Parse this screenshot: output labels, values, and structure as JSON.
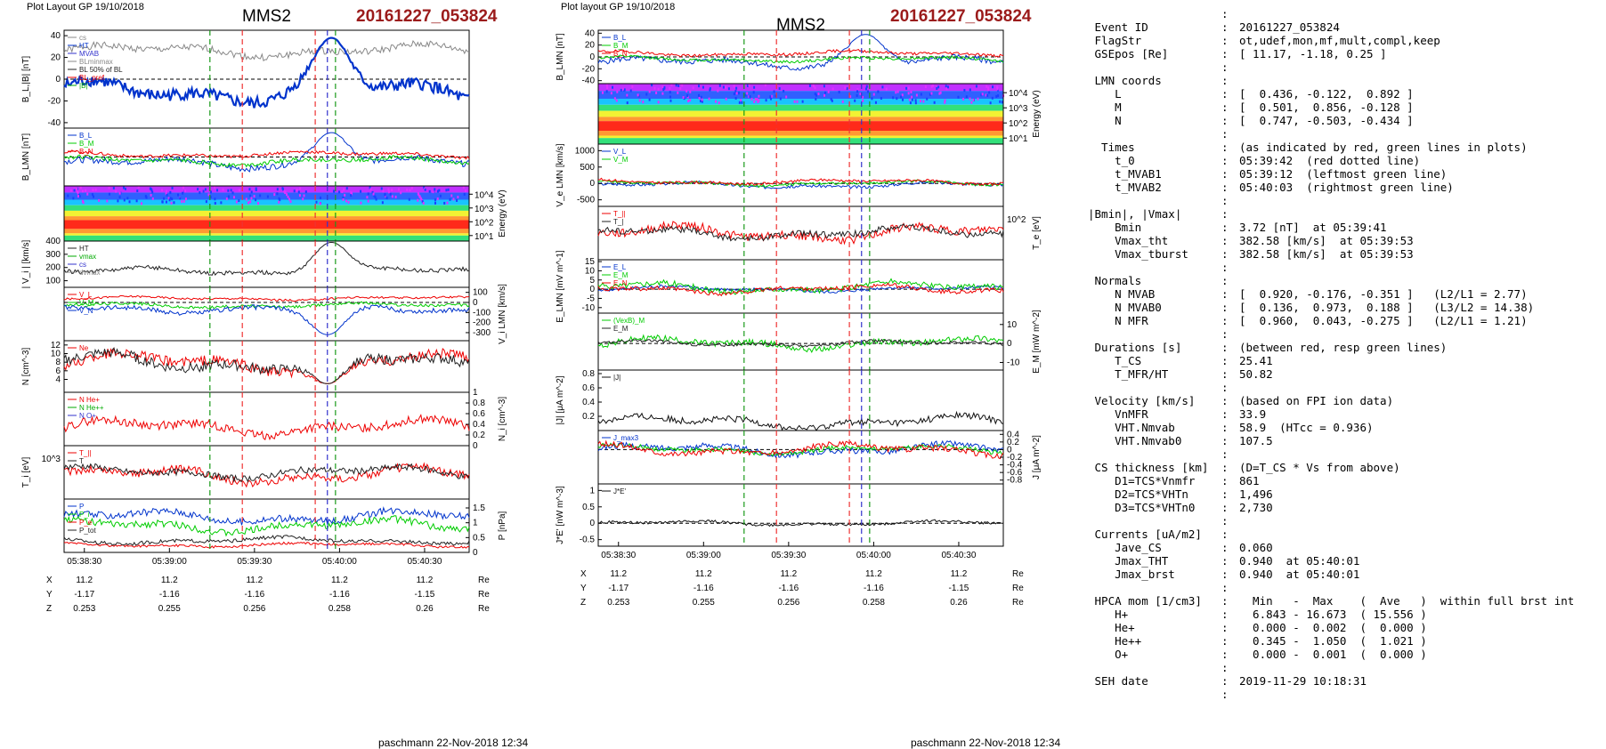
{
  "plots": [
    {
      "header_left": "Plot Layout GP 19/10/2018",
      "spacecraft": "MMS2",
      "event": "20161227_053824",
      "footer": "paschmann 22-Nov-2018 12:34",
      "times": [
        "05:38:30",
        "05:39:00",
        "05:39:30",
        "05:40:00",
        "05:40:30"
      ],
      "coord_rows": [
        {
          "label": "X",
          "values": [
            "11.2",
            "11.2",
            "11.2",
            "11.2",
            "11.2"
          ],
          "unit": "Re"
        },
        {
          "label": "Y",
          "values": [
            "-1.17",
            "-1.16",
            "-1.16",
            "-1.16",
            "-1.15"
          ],
          "unit": "Re"
        },
        {
          "label": "Z",
          "values": [
            "0.253",
            "0.255",
            "0.256",
            "0.258",
            "0.26"
          ],
          "unit": "Re"
        }
      ],
      "panels": [
        {
          "id": "p1a",
          "type": "line",
          "ylabel": "B_L,|B| [nT]",
          "side": "left",
          "ylim": [
            -45,
            45
          ],
          "ticks": [
            -40,
            -20,
            0,
            20,
            40
          ],
          "legend": [
            "cs",
            "HT",
            "MVAB",
            "BLminmax",
            "BL 50% of BL",
            "BL_pref",
            "|B|"
          ],
          "series": [
            {
              "c": "#888",
              "base": 26,
              "amp": 8,
              "w": 1
            },
            {
              "c": "#0033cc",
              "base": -12,
              "amp": 14,
              "w": 2.2,
              "peak": 38
            }
          ]
        },
        {
          "id": "p1b",
          "type": "line",
          "ylabel": "B_LMN [nT]",
          "side": "left",
          "ylim": [
            -45,
            45
          ],
          "ticks": [],
          "legend": [
            "B_L",
            "B_M",
            "B_N"
          ],
          "series": [
            {
              "c": "#0033cc",
              "base": -10,
              "amp": 12,
              "w": 1,
              "peak": 38
            },
            {
              "c": "#00cc00",
              "base": -6,
              "amp": 8,
              "w": 1
            },
            {
              "c": "#e00",
              "base": 4,
              "amp": 6,
              "w": 1
            }
          ]
        },
        {
          "id": "p1c",
          "type": "spectrogram",
          "ylabel": "Energy (eV)",
          "side": "right",
          "ticks_text": [
            "10^4",
            "10^3",
            "10^2",
            "10^1"
          ]
        },
        {
          "id": "p1d",
          "type": "line",
          "ylabel": "| V_i | [km/s]",
          "side": "left",
          "ylim": [
            50,
            400
          ],
          "ticks": [
            100,
            200,
            300,
            400
          ],
          "legend": [
            "HT",
            "vmax",
            "cs",
            "dvmax"
          ],
          "series": [
            {
              "c": "#222",
              "base": 170,
              "amp": 40,
              "w": 1,
              "peak": 390
            }
          ]
        },
        {
          "id": "p1e",
          "type": "line",
          "ylabel": "V_i LMN [km/s]",
          "side": "right",
          "ylim": [
            -380,
            150
          ],
          "ticks": [
            100,
            0,
            -100,
            -200,
            -300
          ],
          "legend": [
            "V_L",
            "V_M",
            "V_N"
          ],
          "series": [
            {
              "c": "#e00",
              "base": 40,
              "amp": 25,
              "w": 1
            },
            {
              "c": "#00cc00",
              "base": -30,
              "amp": 35,
              "w": 1
            },
            {
              "c": "#0033cc",
              "base": -60,
              "amp": 60,
              "w": 1,
              "dip": -320
            }
          ]
        },
        {
          "id": "p1f",
          "type": "line",
          "ylabel": "N [cm^-3]",
          "side": "left",
          "ylim": [
            1,
            13
          ],
          "ticks": [
            4,
            6,
            8,
            10,
            12
          ],
          "legend": [
            "Ne"
          ],
          "series": [
            {
              "c": "#e00",
              "base": 8,
              "amp": 3,
              "w": 1,
              "dip": 3
            },
            {
              "c": "#222",
              "base": 8,
              "amp": 3,
              "w": 1,
              "dip": 3
            }
          ]
        },
        {
          "id": "p1g",
          "type": "line",
          "ylabel": "N_i [cm^-3]",
          "side": "right",
          "ylim": [
            0,
            1
          ],
          "ticks": [
            0,
            0.2,
            0.4,
            0.6,
            0.8,
            1.0
          ],
          "legend": [
            "N He+",
            "N He++",
            "N O+"
          ],
          "series": [
            {
              "c": "#e00",
              "base": 0.35,
              "amp": 0.2,
              "w": 1
            }
          ]
        },
        {
          "id": "p1h",
          "type": "line",
          "ylabel": "T_i [eV]",
          "side": "left",
          "ylim": [
            0,
            1
          ],
          "ticks_text": [
            "10^3"
          ],
          "legend": [
            "T_||",
            "T"
          ],
          "series": [
            {
              "c": "#e00",
              "base": 0.45,
              "amp": 0.2,
              "w": 1
            },
            {
              "c": "#222",
              "base": 0.5,
              "amp": 0.15,
              "w": 1
            }
          ]
        },
        {
          "id": "p1i",
          "type": "line",
          "ylabel": "P [nPa]",
          "side": "right",
          "ylim": [
            0,
            1.8
          ],
          "ticks": [
            0,
            0.5,
            1.0,
            1.5
          ],
          "legend": [
            "P",
            "P_i",
            "P_e",
            "P_tot"
          ],
          "series": [
            {
              "c": "#0033cc",
              "base": 1.2,
              "amp": 0.3,
              "w": 1
            },
            {
              "c": "#00cc00",
              "base": 0.9,
              "amp": 0.3,
              "w": 1
            },
            {
              "c": "#e00",
              "base": 0.25,
              "amp": 0.1,
              "w": 1
            },
            {
              "c": "#222",
              "base": 0.4,
              "amp": 0.15,
              "w": 1
            }
          ]
        }
      ]
    },
    {
      "header_left": "Plot layout GP 19/10/2018",
      "spacecraft": "MMS2",
      "event": "20161227_053824",
      "footer": "paschmann 22-Nov-2018 12:34",
      "times": [
        "05:38:30",
        "05:39:00",
        "05:39:30",
        "05:40:00",
        "05:40:30"
      ],
      "coord_rows": [
        {
          "label": "X",
          "values": [
            "11.2",
            "11.2",
            "11.2",
            "11.2",
            "11.2"
          ],
          "unit": "Re"
        },
        {
          "label": "Y",
          "values": [
            "-1.17",
            "-1.16",
            "-1.16",
            "-1.16",
            "-1.15"
          ],
          "unit": "Re"
        },
        {
          "label": "Z",
          "values": [
            "0.253",
            "0.255",
            "0.256",
            "0.258",
            "0.26"
          ],
          "unit": "Re"
        }
      ],
      "panels": [
        {
          "id": "p2a",
          "type": "line",
          "ylabel": "B_LMN [nT]",
          "side": "left",
          "ylim": [
            -45,
            45
          ],
          "ticks": [
            40,
            20,
            0,
            -20,
            -40
          ],
          "legend": [
            "B_L",
            "B_M",
            "B_N"
          ],
          "series": [
            {
              "c": "#0033cc",
              "base": -10,
              "amp": 12,
              "w": 1,
              "peak": 38
            },
            {
              "c": "#00cc00",
              "base": -4,
              "amp": 6,
              "w": 1
            },
            {
              "c": "#e00",
              "base": 6,
              "amp": 6,
              "w": 1
            }
          ]
        },
        {
          "id": "p2b",
          "type": "spectrogram",
          "ylabel": "Energy (eV)",
          "side": "right",
          "ticks_text": [
            "10^4",
            "10^3",
            "10^2",
            "10^1"
          ]
        },
        {
          "id": "p2c",
          "type": "line",
          "ylabel": "V_e LMN [km/s]",
          "side": "left",
          "ylim": [
            -700,
            1200
          ],
          "ticks": [
            1000,
            500,
            0,
            -500
          ],
          "legend": [
            "V_L",
            "V_M"
          ],
          "series": [
            {
              "c": "#0033cc",
              "base": -50,
              "amp": 120,
              "w": 1
            },
            {
              "c": "#00cc00",
              "base": 0,
              "amp": 100,
              "w": 1
            },
            {
              "c": "#e00",
              "base": 50,
              "amp": 100,
              "w": 1
            }
          ]
        },
        {
          "id": "p2d",
          "type": "line",
          "ylabel": "T_e [eV]",
          "side": "right",
          "ylim": [
            0,
            1
          ],
          "ticks_text": [
            "10^2"
          ],
          "legend": [
            "T_||",
            "T_|"
          ],
          "series": [
            {
              "c": "#e00",
              "base": 0.5,
              "amp": 0.2,
              "w": 1
            },
            {
              "c": "#222",
              "base": 0.5,
              "amp": 0.15,
              "w": 1
            }
          ]
        },
        {
          "id": "p2e",
          "type": "line",
          "ylabel": "E_LMN [mV m^-1]",
          "side": "left",
          "ylim": [
            -13,
            16
          ],
          "ticks": [
            15,
            10,
            5,
            0,
            -5,
            -10
          ],
          "legend": [
            "E_L",
            "E_M",
            "E_N"
          ],
          "series": [
            {
              "c": "#0033cc",
              "base": 0,
              "amp": 2,
              "w": 1
            },
            {
              "c": "#00cc00",
              "base": 1,
              "amp": 4,
              "w": 1
            },
            {
              "c": "#e00",
              "base": 0,
              "amp": 3,
              "w": 1
            }
          ]
        },
        {
          "id": "p2f",
          "type": "line",
          "ylabel": "E_M [mW m^-2]",
          "side": "right",
          "ylim": [
            -14,
            16
          ],
          "ticks": [
            10,
            0,
            -10
          ],
          "legend": [
            "(VexB)_M",
            "E_M"
          ],
          "series": [
            {
              "c": "#00cc00",
              "base": 0,
              "amp": 4,
              "w": 1
            },
            {
              "c": "#222",
              "base": 0,
              "amp": 2,
              "w": 1
            }
          ]
        },
        {
          "id": "p2g",
          "type": "line",
          "ylabel": "|J| [μA m^-2]",
          "side": "left",
          "ylim": [
            0,
            0.85
          ],
          "ticks": [
            0.8,
            0.6,
            0.4,
            0.2
          ],
          "legend": [
            "|J|"
          ],
          "series": [
            {
              "c": "#111",
              "base": 0.12,
              "amp": 0.12,
              "w": 1
            }
          ]
        },
        {
          "id": "p2h",
          "type": "line",
          "ylabel": "J [μA m^-2]",
          "side": "right",
          "ylim": [
            -0.9,
            0.5
          ],
          "ticks": [
            0.4,
            0.2,
            0.0,
            -0.2,
            -0.4,
            -0.6,
            -0.8
          ],
          "legend": [
            "J_max3"
          ],
          "series": [
            {
              "c": "#0033cc",
              "base": 0,
              "amp": 0.2,
              "w": 1
            },
            {
              "c": "#00cc00",
              "base": 0,
              "amp": 0.15,
              "w": 1
            },
            {
              "c": "#e00",
              "base": 0,
              "amp": 0.2,
              "w": 1
            }
          ]
        },
        {
          "id": "p2i",
          "type": "line",
          "ylabel": "J*E' [nW m^-3]",
          "side": "left",
          "ylim": [
            -0.7,
            1.2
          ],
          "ticks": [
            1.0,
            0.5,
            0.0,
            -0.5
          ],
          "legend": [
            "J*E'"
          ],
          "series": [
            {
              "c": "#111",
              "base": 0,
              "amp": 0.1,
              "w": 1
            }
          ]
        }
      ]
    }
  ],
  "info": {
    "rows": [
      {
        "k": "",
        "c": ":",
        "v": ""
      },
      {
        "k": " Event ID",
        "c": ":",
        "v": "20161227_053824"
      },
      {
        "k": " FlagStr",
        "c": ":",
        "v": "ot,udef,mon,mf,mult,compl,keep"
      },
      {
        "k": " GSEpos [Re]",
        "c": ":",
        "v": "[ 11.17, -1.18, 0.25 ]"
      },
      {
        "k": "",
        "c": ":",
        "v": ""
      },
      {
        "k": " LMN coords",
        "c": ":",
        "v": ""
      },
      {
        "k": "    L",
        "c": ":",
        "v": "[  0.436, -0.122,  0.892 ]"
      },
      {
        "k": "    M",
        "c": ":",
        "v": "[  0.501,  0.856, -0.128 ]"
      },
      {
        "k": "    N",
        "c": ":",
        "v": "[  0.747, -0.503, -0.434 ]"
      },
      {
        "k": "",
        "c": ":",
        "v": ""
      },
      {
        "k": "  Times",
        "c": ":",
        "v": "(as indicated by red, green lines in plots)"
      },
      {
        "k": "    t_0",
        "c": ":",
        "v": "05:39:42  (red dotted line)"
      },
      {
        "k": "    t_MVAB1",
        "c": ":",
        "v": "05:39:12  (leftmost green line)"
      },
      {
        "k": "    t_MVAB2",
        "c": ":",
        "v": "05:40:03  (rightmost green line)"
      },
      {
        "k": "",
        "c": ":",
        "v": ""
      },
      {
        "k": "|Bmin|, |Vmax|",
        "c": ":",
        "v": ""
      },
      {
        "k": "    Bmin",
        "c": ":",
        "v": "3.72 [nT]  at 05:39:41"
      },
      {
        "k": "    Vmax_tht",
        "c": ":",
        "v": "382.58 [km/s]  at 05:39:53"
      },
      {
        "k": "    Vmax_tburst",
        "c": ":",
        "v": "382.58 [km/s]  at 05:39:53"
      },
      {
        "k": "",
        "c": ":",
        "v": ""
      },
      {
        "k": " Normals",
        "c": ":",
        "v": ""
      },
      {
        "k": "    N MVAB",
        "c": ":",
        "v": "[  0.920, -0.176, -0.351 ]   (L2/L1 = 2.77)"
      },
      {
        "k": "    N MVAB0",
        "c": ":",
        "v": "[  0.136,  0.973,  0.188 ]   (L3/L2 = 14.38)"
      },
      {
        "k": "    N MFR",
        "c": ":",
        "v": "[  0.960,  0.043, -0.275 ]   (L2/L1 = 1.21)"
      },
      {
        "k": "",
        "c": ":",
        "v": ""
      },
      {
        "k": " Durations [s]",
        "c": ":",
        "v": "(between red, resp green lines)"
      },
      {
        "k": "    T_CS",
        "c": ":",
        "v": "25.41"
      },
      {
        "k": "    T_MFR/HT",
        "c": ":",
        "v": "50.82"
      },
      {
        "k": "",
        "c": ":",
        "v": ""
      },
      {
        "k": " Velocity [km/s]",
        "c": ":",
        "v": "(based on FPI ion data)"
      },
      {
        "k": "    VnMFR",
        "c": ":",
        "v": "33.9"
      },
      {
        "k": "    VHT.Nmvab",
        "c": ":",
        "v": "58.9  (HTcc = 0.936)"
      },
      {
        "k": "    VHT.Nmvab0",
        "c": ":",
        "v": "107.5"
      },
      {
        "k": "",
        "c": ":",
        "v": ""
      },
      {
        "k": " CS thickness [km]",
        "c": ":",
        "v": "(D=T_CS * Vs from above)"
      },
      {
        "k": "    D1=TCS*Vnmfr",
        "c": ":",
        "v": "861"
      },
      {
        "k": "    D2=TCS*VHTn",
        "c": ":",
        "v": "1,496"
      },
      {
        "k": "    D3=TCS*VHTn0",
        "c": ":",
        "v": "2,730"
      },
      {
        "k": "",
        "c": ":",
        "v": ""
      },
      {
        "k": " Currents [uA/m2]",
        "c": ":",
        "v": ""
      },
      {
        "k": "    Jave_CS",
        "c": ":",
        "v": "0.060"
      },
      {
        "k": "    Jmax_THT",
        "c": ":",
        "v": "0.940  at 05:40:01"
      },
      {
        "k": "    Jmax_brst",
        "c": ":",
        "v": "0.940  at 05:40:01"
      },
      {
        "k": "",
        "c": ":",
        "v": ""
      },
      {
        "k": " HPCA mom [1/cm3]",
        "c": ":",
        "v": "  Min   -  Max    (  Ave   )  within full brst int"
      },
      {
        "k": "    H+",
        "c": ":",
        "v": "  6.843 - 16.673  ( 15.556 )"
      },
      {
        "k": "    He+",
        "c": ":",
        "v": "  0.000 -  0.002  (  0.000 )"
      },
      {
        "k": "    He++",
        "c": ":",
        "v": "  0.345 -  1.050  (  1.021 )"
      },
      {
        "k": "    O+",
        "c": ":",
        "v": "  0.000 -  0.001  (  0.000 )"
      },
      {
        "k": "",
        "c": ":",
        "v": ""
      },
      {
        "k": " SEH date",
        "c": ":",
        "v": "2019-11-29 10:18:31"
      },
      {
        "k": "",
        "c": ":",
        "v": ""
      }
    ]
  },
  "chart_data": [
    {
      "type": "line",
      "title": "MMS2 20161227_053824",
      "x": [
        "05:38:30",
        "05:39:00",
        "05:39:30",
        "05:40:00",
        "05:40:30"
      ],
      "panels": [
        "B_L,|B| [nT]",
        "B_LMN [nT]",
        "Energy (eV)",
        "| V_i | [km/s]",
        "V_i LMN [km/s]",
        "N [cm^-3]",
        "N_i [cm^-3]",
        "T_i [eV]",
        "P [nPa]"
      ]
    },
    {
      "type": "line",
      "title": "MMS2 20161227_053824",
      "x": [
        "05:38:30",
        "05:39:00",
        "05:39:30",
        "05:40:00",
        "05:40:30"
      ],
      "panels": [
        "B_LMN [nT]",
        "Energy (eV)",
        "V_e LMN [km/s]",
        "T_e [eV]",
        "E_LMN [mV m^-1]",
        "E_M [mW m^-2]",
        "|J| [μA m^-2]",
        "J [μA m^-2]",
        "J*E' [nW m^-3]"
      ]
    }
  ]
}
